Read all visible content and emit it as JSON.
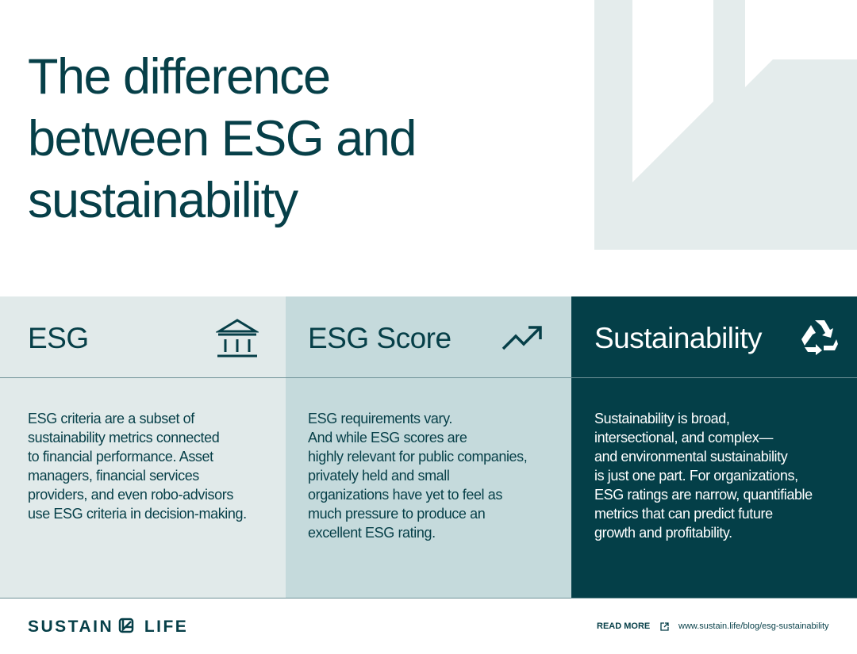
{
  "header": {
    "title": "The difference between ESG and sustainability"
  },
  "columns": [
    {
      "heading": "ESG",
      "lines": [
        "ESG criteria are a subset of",
        "sustainability metrics connected",
        "to financial performance. Asset",
        "managers, financial services",
        "providers, and even robo-advisors",
        "use ESG criteria in decision-making."
      ]
    },
    {
      "heading": "ESG Score",
      "lines": [
        "ESG requirements vary.",
        "And while ESG scores are",
        "highly relevant for public companies,",
        "privately held and small",
        "organizations have yet to feel as",
        "much pressure to produce an",
        "excellent ESG rating."
      ]
    },
    {
      "heading": "Sustainability",
      "lines": [
        "Sustainability is broad,",
        "intersectional, and complex—",
        "and environmental sustainability",
        "is just one part. For organizations,",
        "ESG ratings are narrow, quantifiable",
        "metrics that can predict future",
        "growth and profitability."
      ]
    }
  ],
  "footer": {
    "logo_left": "SUSTAIN",
    "logo_right": "LIFE",
    "read_more": "READ MORE",
    "url": "www.sustain.life/blog/esg-sustainability"
  }
}
